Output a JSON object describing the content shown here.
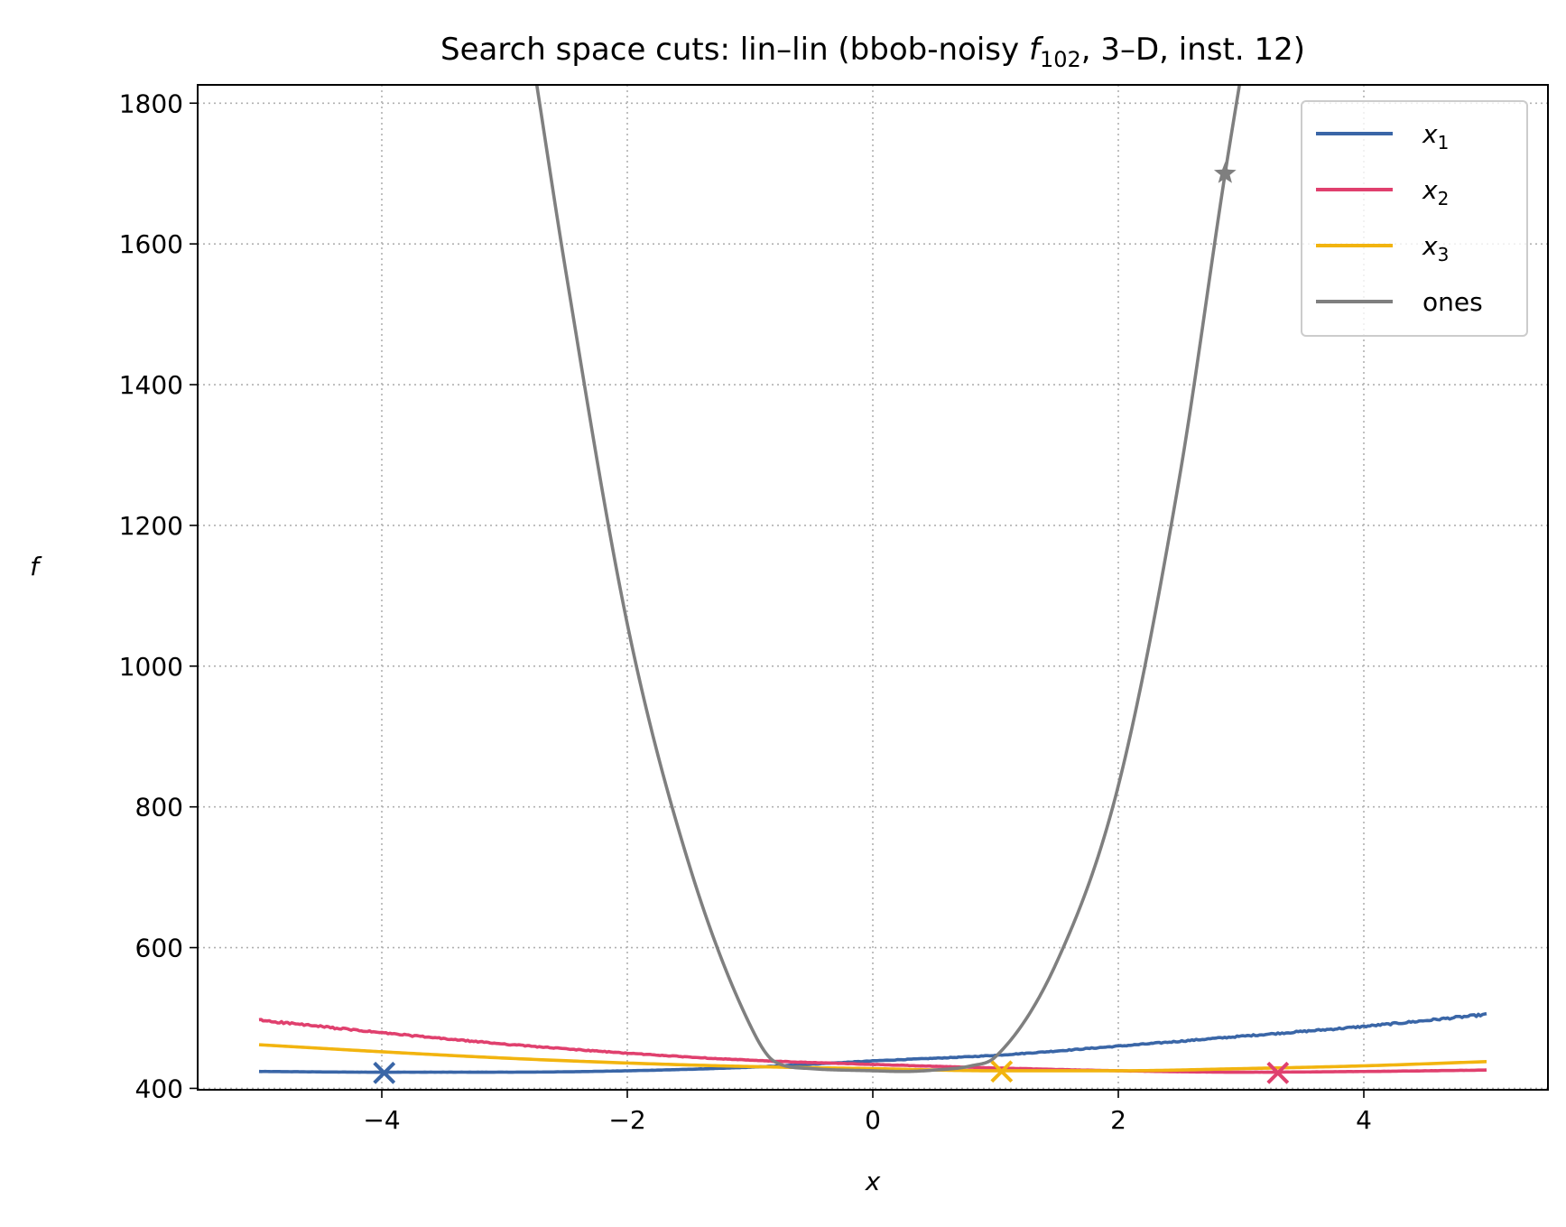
{
  "chart_data": {
    "type": "line",
    "title_main": "Search space cuts: lin–lin (bbob-noisy ",
    "title_f": "f",
    "title_sub": "102",
    "title_rest": ", 3–D, inst. 12)",
    "xlabel": "x",
    "ylabel": "f",
    "xlim": [
      -5.5,
      5.5
    ],
    "ylim": [
      398,
      1826
    ],
    "xticks": [
      -4,
      -2,
      0,
      2,
      4
    ],
    "xtick_labels": [
      "−4",
      "−2",
      "0",
      "2",
      "4"
    ],
    "yticks": [
      400,
      600,
      800,
      1000,
      1200,
      1400,
      1600,
      1800
    ],
    "ytick_labels": [
      "400",
      "600",
      "800",
      "1000",
      "1200",
      "1400",
      "1600",
      "1800"
    ],
    "grid": true,
    "legend_position": "top-right",
    "series": [
      {
        "name_base": "x",
        "name_sub": "1",
        "color": "#3a66a7",
        "x": [
          -5,
          -4,
          -3,
          -2,
          -1,
          0,
          1,
          2,
          3,
          4,
          5
        ],
        "y": [
          424,
          423,
          423,
          425,
          430,
          439,
          447,
          460,
          474,
          488,
          505
        ],
        "noisy": true,
        "marker": {
          "type": "x",
          "x": -3.98,
          "y": 422
        }
      },
      {
        "name_base": "x",
        "name_sub": "2",
        "color": "#e0406e",
        "x": [
          -5,
          -4,
          -3,
          -2,
          -1,
          0,
          1,
          2,
          3,
          4,
          5
        ],
        "y": [
          497,
          479,
          463,
          450,
          440,
          434,
          429,
          425,
          423,
          424,
          426
        ],
        "noisy": true,
        "marker": {
          "type": "x",
          "x": 3.3,
          "y": 422
        }
      },
      {
        "name_base": "x",
        "name_sub": "3",
        "color": "#f2b40f",
        "x": [
          -5,
          -4,
          -3,
          -2,
          -1,
          0,
          1,
          2,
          3,
          4,
          5
        ],
        "y": [
          462,
          452,
          443,
          436,
          431,
          428,
          425,
          425,
          428,
          432,
          438
        ],
        "noisy": false,
        "marker": {
          "type": "x",
          "x": 1.05,
          "y": 424
        }
      },
      {
        "name": "ones",
        "color": "#7f7f7f",
        "x": [
          -2.75,
          -2.5,
          -2,
          -1.5,
          -1,
          -0.8,
          -0.5,
          0,
          0.25,
          0.5,
          0.8,
          1,
          1.5,
          2,
          2.5,
          2.87,
          3.0
        ],
        "y": [
          1840,
          1560,
          1060,
          720,
          490,
          438,
          428,
          425,
          424,
          426,
          432,
          445,
          580,
          830,
          1270,
          1700,
          1840
        ],
        "noisy": false,
        "marker": {
          "type": "star",
          "x": 2.87,
          "y": 1700
        }
      }
    ]
  }
}
